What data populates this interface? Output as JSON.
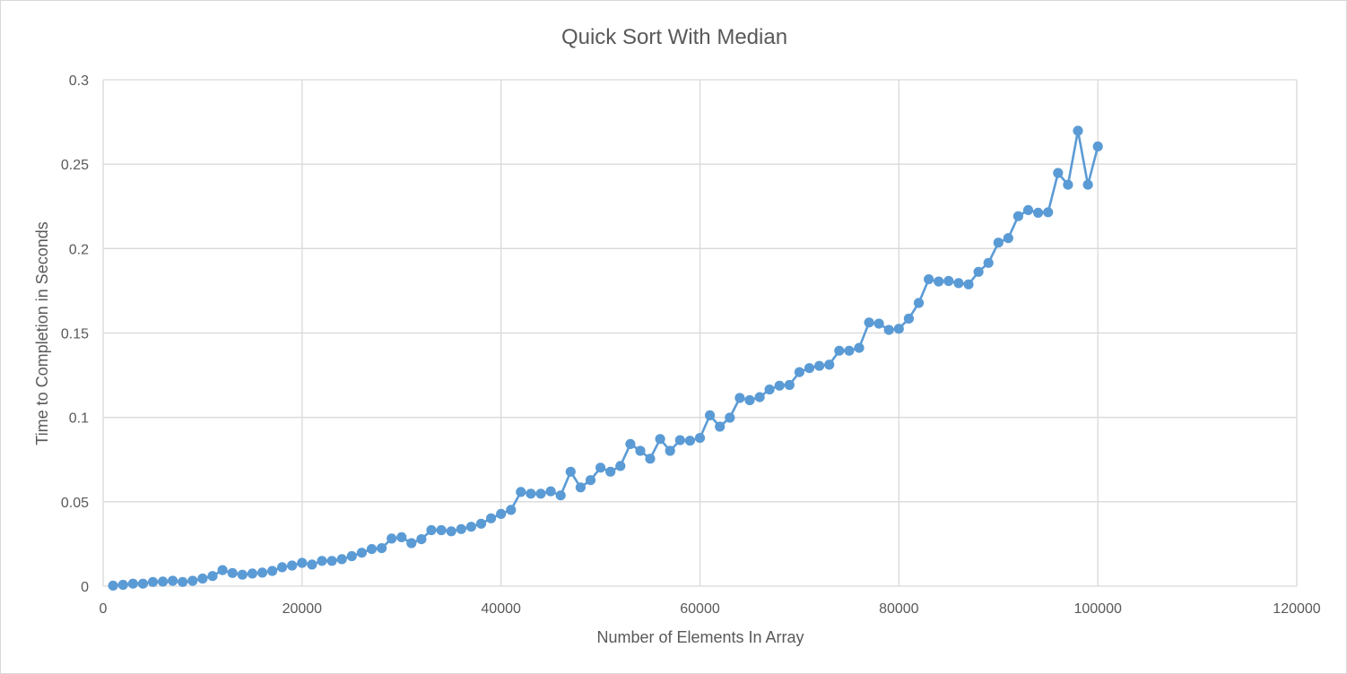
{
  "chart_data": {
    "type": "line",
    "title": "Quick Sort With Median",
    "xlabel": "Number of Elements In Array",
    "ylabel": "Time to Completion in Seconds",
    "xlim": [
      0,
      120000
    ],
    "ylim": [
      0,
      0.3
    ],
    "x_ticks": [
      "0",
      "20000",
      "40000",
      "60000",
      "80000",
      "100000",
      "120000"
    ],
    "y_ticks": [
      "0",
      "0.05",
      "0.1",
      "0.15",
      "0.2",
      "0.25",
      "0.3"
    ],
    "grid": true,
    "markers": true,
    "color": "#5b9bd5",
    "series": [
      {
        "x": [
          1000,
          2000,
          3000,
          4000,
          5000,
          6000,
          7000,
          8000,
          9000,
          10000,
          11000,
          12000,
          13000,
          14000,
          15000,
          16000,
          17000,
          18000,
          19000,
          20000,
          21000,
          22000,
          23000,
          24000,
          25000,
          26000,
          27000,
          28000,
          29000,
          30000,
          31000,
          32000,
          33000,
          34000,
          35000,
          36000,
          37000,
          38000,
          39000,
          40000,
          41000,
          42000,
          43000,
          44000,
          45000,
          46000,
          47000,
          48000,
          49000,
          50000,
          51000,
          52000,
          53000,
          54000,
          55000,
          56000,
          57000,
          58000,
          59000,
          60000,
          61000,
          62000,
          63000,
          64000,
          65000,
          66000,
          67000,
          68000,
          69000,
          70000,
          71000,
          72000,
          73000,
          74000,
          75000,
          76000,
          77000,
          78000,
          79000,
          80000,
          81000,
          82000,
          83000,
          84000,
          85000,
          86000,
          87000,
          88000,
          89000,
          90000,
          91000,
          92000,
          93000,
          94000,
          95000,
          96000,
          97000,
          98000,
          99000,
          100000
        ],
        "values": [
          0.0003,
          0.0008,
          0.0015,
          0.0015,
          0.0025,
          0.0027,
          0.0032,
          0.0025,
          0.0032,
          0.0045,
          0.006,
          0.0095,
          0.0078,
          0.0068,
          0.0075,
          0.008,
          0.009,
          0.0112,
          0.0122,
          0.0138,
          0.0128,
          0.015,
          0.015,
          0.016,
          0.0178,
          0.0198,
          0.022,
          0.0225,
          0.0282,
          0.029,
          0.0255,
          0.0278,
          0.0332,
          0.0332,
          0.0325,
          0.0338,
          0.0352,
          0.037,
          0.0402,
          0.0428,
          0.0452,
          0.0558,
          0.0548,
          0.0548,
          0.0562,
          0.0538,
          0.0678,
          0.0585,
          0.0628,
          0.0702,
          0.0678,
          0.0712,
          0.0842,
          0.0802,
          0.0755,
          0.0872,
          0.0802,
          0.0865,
          0.0862,
          0.0878,
          0.1012,
          0.0945,
          0.0998,
          0.1115,
          0.1102,
          0.112,
          0.1165,
          0.1188,
          0.1192,
          0.1268,
          0.1292,
          0.1305,
          0.1312,
          0.1395,
          0.1395,
          0.1412,
          0.1562,
          0.1555,
          0.1518,
          0.1525,
          0.1585,
          0.1678,
          0.1818,
          0.1805,
          0.1808,
          0.1795,
          0.1788,
          0.1862,
          0.1915,
          0.2035,
          0.2062,
          0.2192,
          0.2228,
          0.2212,
          0.2215,
          0.2448,
          0.2378,
          0.2698,
          0.2378,
          0.2605
        ]
      }
    ]
  }
}
